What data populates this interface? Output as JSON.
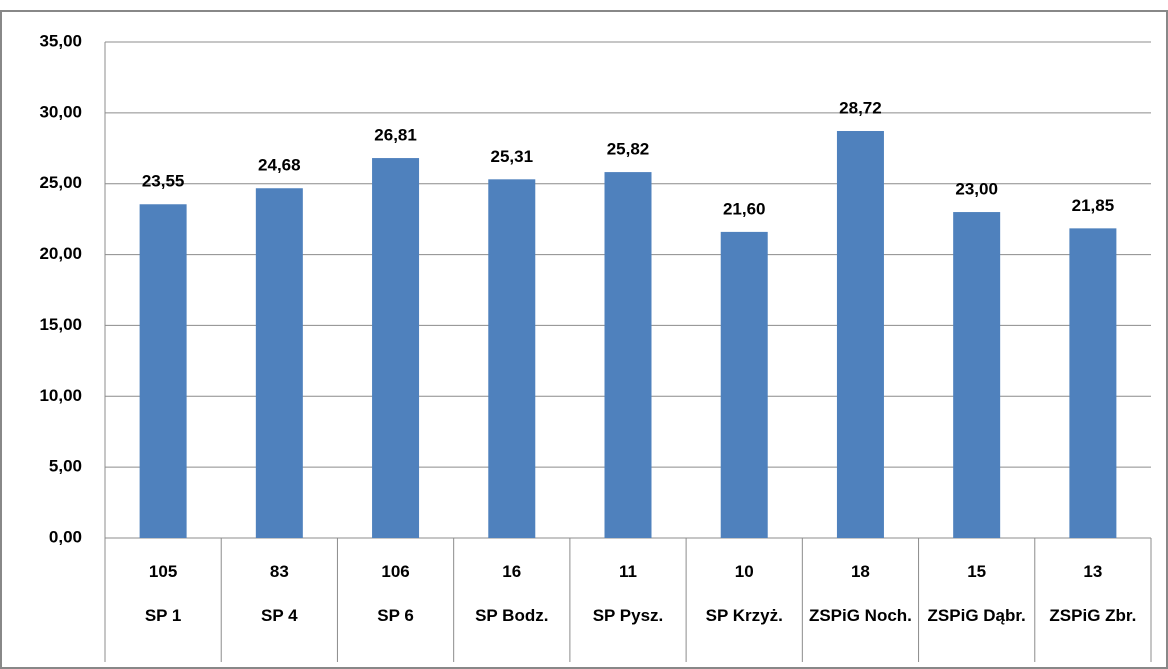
{
  "chart_data": {
    "type": "bar",
    "categories": [
      "SP 1",
      "SP 4",
      "SP 6",
      "SP Bodz.",
      "SP Pysz.",
      "SP Krzyż.",
      "ZSPiG Noch.",
      "ZSPiG Dąbr.",
      "ZSPiG Zbr."
    ],
    "category_counts": [
      "105",
      "83",
      "106",
      "16",
      "11",
      "10",
      "18",
      "15",
      "13"
    ],
    "values": [
      23.55,
      24.68,
      26.81,
      25.31,
      25.82,
      21.6,
      28.72,
      23.0,
      21.85
    ],
    "value_labels": [
      "23,55",
      "24,68",
      "26,81",
      "25,31",
      "25,82",
      "21,60",
      "28,72",
      "23,00",
      "21,85"
    ],
    "color": "#4f81bd",
    "ylim": [
      0,
      35
    ],
    "yticks": [
      {
        "value": 0,
        "label": "0,00"
      },
      {
        "value": 5,
        "label": "5,00"
      },
      {
        "value": 10,
        "label": "10,00"
      },
      {
        "value": 15,
        "label": "15,00"
      },
      {
        "value": 20,
        "label": "20,00"
      },
      {
        "value": 25,
        "label": "25,00"
      },
      {
        "value": 30,
        "label": "30,00"
      },
      {
        "value": 35,
        "label": "35,00"
      }
    ],
    "grid": true
  }
}
